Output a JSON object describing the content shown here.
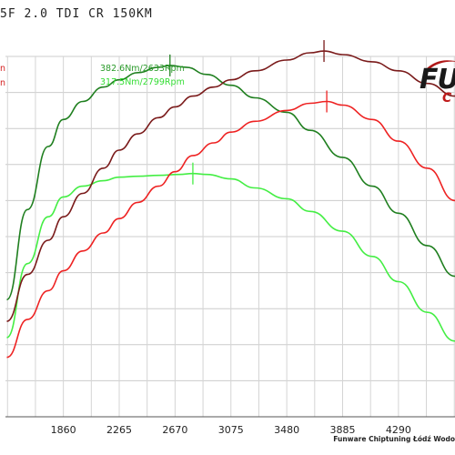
{
  "header": {
    "title": "5F 2.0 TDI CR 150KM"
  },
  "logo": {
    "top_text": "FU",
    "bottom_text": "C"
  },
  "left_fragments": [
    {
      "text": "n",
      "color": "#d42020"
    },
    {
      "text": "n",
      "color": "#d42020"
    }
  ],
  "peaks": [
    {
      "label": "382.6Nm/2633Rpm",
      "color": "#2a9a2a"
    },
    {
      "label": "317.5Nm/2799Rpm",
      "color": "#33dd33"
    }
  ],
  "footer": {
    "text": "Funware Chiptuning Łódź Wodo"
  },
  "chart_data": {
    "type": "line",
    "title": "5F 2.0 TDI CR 150KM",
    "xlabel": "",
    "ylabel": "",
    "xlim": [
      1440,
      4700
    ],
    "x_ticks": [
      "1860",
      "2265",
      "2670",
      "3075",
      "3480",
      "3885",
      "4290"
    ],
    "ylim": [
      0,
      20
    ],
    "grid": true,
    "series": [
      {
        "name": "382.6Nm/2633Rpm",
        "color": "#1f7f1f",
        "x": [
          1450,
          1600,
          1750,
          1860,
          2000,
          2150,
          2265,
          2400,
          2550,
          2633,
          2750,
          2900,
          3075,
          3250,
          3480,
          3650,
          3885,
          4100,
          4290,
          4500,
          4700
        ],
        "y": [
          6.5,
          11.5,
          15.0,
          16.5,
          17.5,
          18.3,
          18.7,
          19.1,
          19.4,
          19.5,
          19.4,
          19.0,
          18.4,
          17.7,
          16.9,
          15.9,
          14.4,
          12.8,
          11.3,
          9.5,
          7.8
        ],
        "marker_x": 2633
      },
      {
        "name": "317.5Nm/2799Rpm",
        "color": "#44ee44",
        "x": [
          1450,
          1600,
          1750,
          1860,
          2000,
          2150,
          2265,
          2400,
          2550,
          2700,
          2799,
          2900,
          3075,
          3250,
          3480,
          3650,
          3885,
          4100,
          4290,
          4500,
          4700
        ],
        "y": [
          4.4,
          8.5,
          11.1,
          12.2,
          12.8,
          13.1,
          13.3,
          13.35,
          13.4,
          13.45,
          13.5,
          13.45,
          13.2,
          12.7,
          12.1,
          11.4,
          10.3,
          8.9,
          7.5,
          5.8,
          4.2
        ],
        "marker_x": 2799
      },
      {
        "name": "",
        "color": "#7a1a1a",
        "x": [
          1450,
          1600,
          1750,
          1860,
          2000,
          2150,
          2265,
          2400,
          2550,
          2670,
          2800,
          2950,
          3075,
          3250,
          3480,
          3650,
          3750,
          3885,
          4100,
          4290,
          4500,
          4700
        ],
        "y": [
          5.3,
          7.9,
          9.8,
          11.1,
          12.4,
          13.8,
          14.8,
          15.7,
          16.6,
          17.2,
          17.8,
          18.3,
          18.7,
          19.2,
          19.8,
          20.2,
          20.3,
          20.1,
          19.7,
          19.2,
          18.5,
          17.8
        ],
        "marker_x": 3750
      },
      {
        "name": "",
        "color": "#ee2222",
        "x": [
          1450,
          1600,
          1750,
          1860,
          2000,
          2150,
          2265,
          2400,
          2550,
          2670,
          2800,
          2950,
          3075,
          3250,
          3480,
          3650,
          3770,
          3885,
          4100,
          4290,
          4500,
          4700
        ],
        "y": [
          3.3,
          5.4,
          7.0,
          8.1,
          9.2,
          10.2,
          11.0,
          11.9,
          12.8,
          13.6,
          14.5,
          15.2,
          15.8,
          16.4,
          17.0,
          17.4,
          17.5,
          17.3,
          16.5,
          15.3,
          13.8,
          12.0
        ],
        "marker_x": 3770
      }
    ]
  }
}
